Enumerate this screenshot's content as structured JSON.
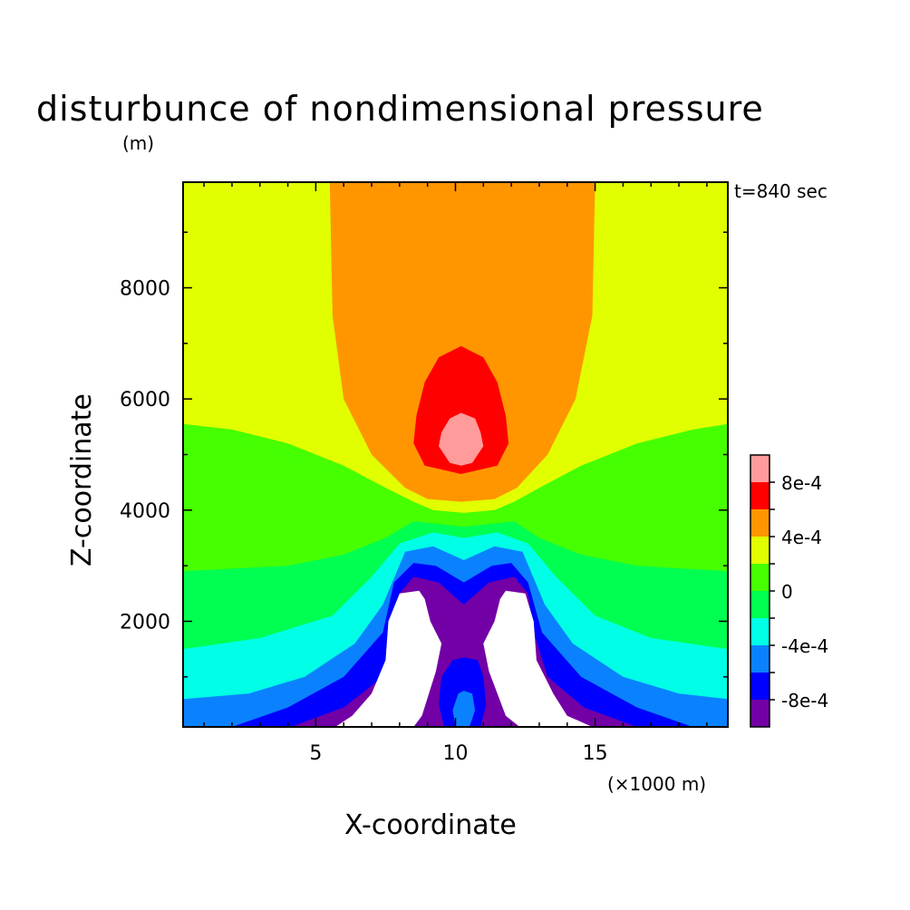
{
  "chart_data": {
    "type": "heatmap",
    "title": "disturbunce of nondimensional pressure",
    "y_unit": "(m)",
    "time_label": "t=840 sec",
    "xlabel": "X-coordinate",
    "x_unit": "(×1000 m)",
    "ylabel": "Z-coordinate",
    "xlim": [
      0.25,
      19.75
    ],
    "ylim": [
      100,
      9900
    ],
    "x_ticks": [
      5,
      10,
      15
    ],
    "y_ticks": [
      2000,
      4000,
      6000,
      8000
    ],
    "levels": [
      {
        "label": "< -1e-3",
        "color": "#ffffff"
      },
      {
        "label": "-1e-3 to -8e-4",
        "color": "#7300a6"
      },
      {
        "label": "-8e-4 to -6e-4",
        "color": "#0000ff"
      },
      {
        "label": "-6e-4 to -4e-4",
        "color": "#0a82ff"
      },
      {
        "label": "-4e-4 to -2e-4",
        "color": "#00ffe6"
      },
      {
        "label": "-2e-4 to 0",
        "color": "#00ff50"
      },
      {
        "label": "0 to 2e-4",
        "color": "#46ff00"
      },
      {
        "label": "2e-4 to 4e-4",
        "color": "#e1ff00"
      },
      {
        "label": "4e-4 to 6e-4",
        "color": "#ff9600"
      },
      {
        "label": "6e-4 to 8e-4",
        "color": "#ff0000"
      },
      {
        "label": "> 8e-4",
        "color": "#ff9b9b"
      }
    ],
    "colorbar_tick_labels": [
      "8e-4",
      "4e-4",
      "0",
      "-4e-4",
      "-8e-4"
    ],
    "field_regions": [
      {
        "level": "-2e-4 to 0 band",
        "color": "#00ff50",
        "points": [
          [
            0.25,
            100
          ],
          [
            19.75,
            100
          ],
          [
            19.75,
            5500
          ],
          [
            18,
            5300
          ],
          [
            15,
            4800
          ],
          [
            12.5,
            4400
          ],
          [
            10.3,
            4200
          ],
          [
            8,
            4400
          ],
          [
            5,
            4800
          ],
          [
            2,
            5300
          ],
          [
            0.25,
            5500
          ]
        ]
      },
      {
        "level": "0 to 2e-4 band",
        "color": "#46ff00",
        "points": [
          [
            0.25,
            2900
          ],
          [
            4,
            3000
          ],
          [
            6,
            3200
          ],
          [
            7.5,
            3500
          ],
          [
            8.5,
            3800
          ],
          [
            10.3,
            3700
          ],
          [
            12.1,
            3800
          ],
          [
            13,
            3500
          ],
          [
            14.5,
            3200
          ],
          [
            16.5,
            3000
          ],
          [
            19.75,
            2900
          ],
          [
            19.75,
            5500
          ],
          [
            18,
            5300
          ],
          [
            15,
            4800
          ],
          [
            12.5,
            4400
          ],
          [
            10.3,
            4200
          ],
          [
            8,
            4400
          ],
          [
            5,
            4800
          ],
          [
            2,
            5300
          ],
          [
            0.25,
            5500
          ]
        ]
      },
      {
        "level": "2e-4 to 4e-4",
        "color": "#e1ff00",
        "points": [
          [
            0.25,
            5550
          ],
          [
            2,
            5450
          ],
          [
            4,
            5200
          ],
          [
            6,
            4800
          ],
          [
            7.5,
            4400
          ],
          [
            8.5,
            4150
          ],
          [
            9.2,
            4000
          ],
          [
            10.3,
            3950
          ],
          [
            11.4,
            4000
          ],
          [
            12.1,
            4150
          ],
          [
            13,
            4400
          ],
          [
            14.5,
            4800
          ],
          [
            16.5,
            5200
          ],
          [
            18.5,
            5450
          ],
          [
            19.75,
            5550
          ],
          [
            19.75,
            9900
          ],
          [
            0.25,
            9900
          ]
        ]
      },
      {
        "level": "4e-4 to 6e-4",
        "color": "#ff9600",
        "points": [
          [
            5.5,
            9900
          ],
          [
            5.6,
            7500
          ],
          [
            6,
            6000
          ],
          [
            7,
            5000
          ],
          [
            8.2,
            4400
          ],
          [
            9,
            4200
          ],
          [
            10.2,
            4150
          ],
          [
            11.4,
            4200
          ],
          [
            12.2,
            4400
          ],
          [
            13.3,
            5000
          ],
          [
            14.3,
            6000
          ],
          [
            14.9,
            7500
          ],
          [
            15,
            9900
          ]
        ]
      },
      {
        "level": "6e-4 to 8e-4",
        "color": "#ff0000",
        "points": [
          [
            8.5,
            5200
          ],
          [
            8.6,
            5700
          ],
          [
            8.9,
            6300
          ],
          [
            9.4,
            6750
          ],
          [
            10.2,
            6950
          ],
          [
            11,
            6750
          ],
          [
            11.5,
            6300
          ],
          [
            11.8,
            5700
          ],
          [
            11.9,
            5200
          ],
          [
            11.5,
            4800
          ],
          [
            10.2,
            4650
          ],
          [
            8.9,
            4800
          ]
        ]
      },
      {
        "level": "> 8e-4",
        "color": "#ff9b9b",
        "points": [
          [
            9.4,
            5150
          ],
          [
            9.5,
            5400
          ],
          [
            9.8,
            5650
          ],
          [
            10.2,
            5750
          ],
          [
            10.7,
            5650
          ],
          [
            10.9,
            5400
          ],
          [
            11,
            5150
          ],
          [
            10.6,
            4850
          ],
          [
            10.2,
            4800
          ],
          [
            9.8,
            4850
          ]
        ]
      },
      {
        "level": "-4e-4 to -2e-4",
        "color": "#00ffe6",
        "points": [
          [
            0.25,
            100
          ],
          [
            19.75,
            100
          ],
          [
            19.75,
            1500
          ],
          [
            17,
            1700
          ],
          [
            15,
            2100
          ],
          [
            13.6,
            2800
          ],
          [
            12.6,
            3400
          ],
          [
            11.5,
            3600
          ],
          [
            10.3,
            3500
          ],
          [
            9.2,
            3600
          ],
          [
            8,
            3400
          ],
          [
            7,
            2800
          ],
          [
            5.6,
            2100
          ],
          [
            3,
            1700
          ],
          [
            0.25,
            1500
          ]
        ]
      },
      {
        "level": "-6e-4 to -4e-4",
        "color": "#0a82ff",
        "points": [
          [
            0.25,
            100
          ],
          [
            19.75,
            100
          ],
          [
            19.75,
            600
          ],
          [
            18,
            700
          ],
          [
            16,
            1000
          ],
          [
            14.2,
            1600
          ],
          [
            13.2,
            2300
          ],
          [
            12.4,
            3250
          ],
          [
            11.4,
            3350
          ],
          [
            10.3,
            3100
          ],
          [
            9.2,
            3350
          ],
          [
            8.2,
            3250
          ],
          [
            7.4,
            2300
          ],
          [
            6.4,
            1600
          ],
          [
            4.6,
            1000
          ],
          [
            2.6,
            700
          ],
          [
            0.25,
            600
          ]
        ]
      },
      {
        "level": "-8e-4 to -6e-4",
        "color": "#0000ff",
        "points": [
          [
            2,
            100
          ],
          [
            18.5,
            100
          ],
          [
            16.5,
            450
          ],
          [
            14.5,
            1000
          ],
          [
            13.1,
            1800
          ],
          [
            12.6,
            2700
          ],
          [
            12,
            3050
          ],
          [
            11.3,
            3000
          ],
          [
            10.3,
            2700
          ],
          [
            9.3,
            3000
          ],
          [
            8.5,
            3050
          ],
          [
            7.8,
            2700
          ],
          [
            7.4,
            1800
          ],
          [
            6,
            1000
          ],
          [
            4,
            450
          ]
        ]
      },
      {
        "level": "-1e-3 to -8e-4",
        "color": "#7300a6",
        "points": [
          [
            4.1,
            100
          ],
          [
            16.5,
            100
          ],
          [
            14.6,
            450
          ],
          [
            13.3,
            1000
          ],
          [
            12.8,
            1800
          ],
          [
            12.6,
            2500
          ],
          [
            12.1,
            2800
          ],
          [
            11.2,
            2700
          ],
          [
            10.3,
            2300
          ],
          [
            9.4,
            2700
          ],
          [
            8.5,
            2800
          ],
          [
            8,
            2500
          ],
          [
            7.8,
            1800
          ],
          [
            7.4,
            1000
          ],
          [
            6,
            450
          ]
        ]
      },
      {
        "level": "< -1e-3 left",
        "color": "#ffffff",
        "points": [
          [
            5.7,
            100
          ],
          [
            8.5,
            100
          ],
          [
            8.8,
            300
          ],
          [
            9.3,
            1100
          ],
          [
            9.5,
            1600
          ],
          [
            9.1,
            2000
          ],
          [
            8.9,
            2400
          ],
          [
            8.7,
            2550
          ],
          [
            8,
            2500
          ],
          [
            7.6,
            2000
          ],
          [
            7.5,
            1300
          ],
          [
            7,
            700
          ],
          [
            6.3,
            300
          ]
        ]
      },
      {
        "level": "< -1e-3 right",
        "color": "#ffffff",
        "points": [
          [
            12.3,
            100
          ],
          [
            14.9,
            100
          ],
          [
            14,
            300
          ],
          [
            13.5,
            700
          ],
          [
            12.9,
            1300
          ],
          [
            12.8,
            2000
          ],
          [
            12.5,
            2500
          ],
          [
            11.8,
            2550
          ],
          [
            11.6,
            2400
          ],
          [
            11.4,
            2000
          ],
          [
            11,
            1600
          ],
          [
            11.2,
            1100
          ],
          [
            11.8,
            300
          ]
        ]
      },
      {
        "level": "-8e-4 to -6e-4 core",
        "color": "#0000ff",
        "points": [
          [
            9.6,
            100
          ],
          [
            9.4,
            500
          ],
          [
            9.5,
            1000
          ],
          [
            9.9,
            1300
          ],
          [
            10.3,
            1350
          ],
          [
            10.8,
            1300
          ],
          [
            11,
            1000
          ],
          [
            11.1,
            500
          ],
          [
            10.9,
            100
          ]
        ]
      },
      {
        "level": "-6e-4 to -4e-4 core",
        "color": "#0a82ff",
        "points": [
          [
            10,
            100
          ],
          [
            9.9,
            400
          ],
          [
            10.1,
            700
          ],
          [
            10.3,
            750
          ],
          [
            10.6,
            700
          ],
          [
            10.7,
            400
          ],
          [
            10.5,
            100
          ]
        ]
      }
    ]
  }
}
